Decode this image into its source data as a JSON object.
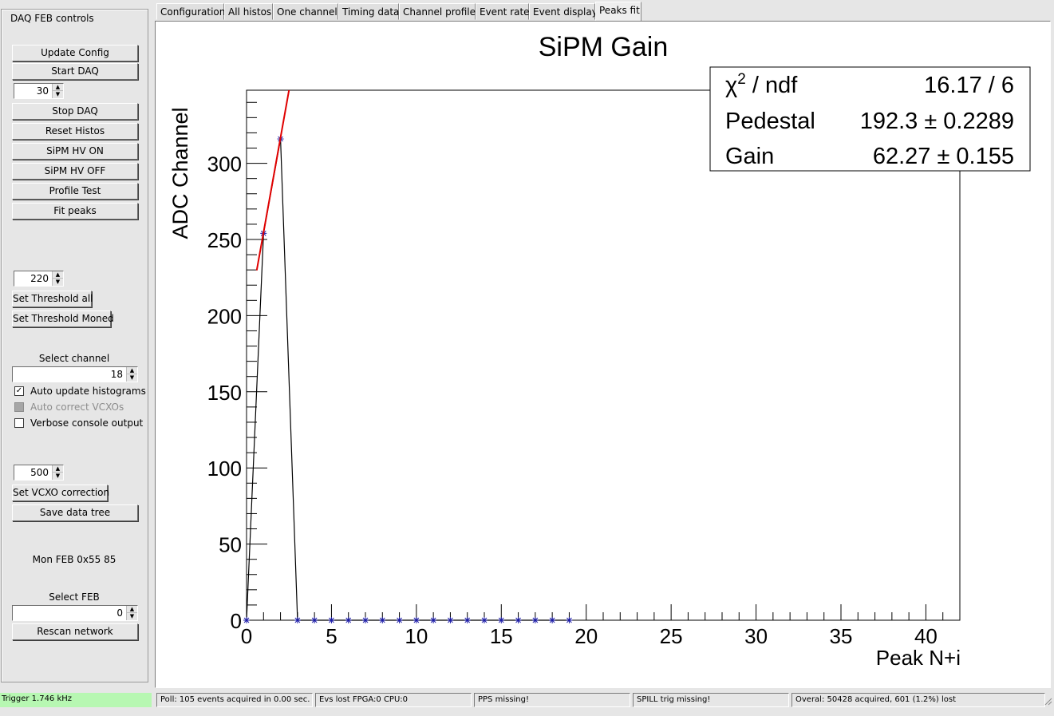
{
  "panel": {
    "title": "DAQ FEB controls",
    "buttons": {
      "update_config": "Update Config",
      "start_daq": "Start DAQ",
      "stop_daq": "Stop DAQ",
      "reset_histos": "Reset Histos",
      "sipm_hv_on": "SiPM HV ON",
      "sipm_hv_off": "SiPM HV OFF",
      "profile_test": "Profile Test",
      "fit_peaks": "Fit peaks",
      "set_threshold_all": "Set Threshold all",
      "set_threshold_moned": "Set Threshold Moned",
      "set_vcxo_correction": "Set VCXO correction",
      "save_data_tree": "Save data tree",
      "rescan_network": "Rescan network"
    },
    "daq_time_value": "30",
    "threshold_value": "220",
    "select_channel_label": "Select channel",
    "select_channel_value": "18",
    "checkboxes": {
      "auto_update": {
        "label": "Auto update histograms",
        "checked": true
      },
      "auto_correct": {
        "label": "Auto correct VCXOs",
        "checked": false,
        "disabled": true
      },
      "verbose": {
        "label": "Verbose console output",
        "checked": false
      }
    },
    "vcxo_value": "500",
    "mon_feb_label": "Mon FEB 0x55 85",
    "select_feb_label": "Select FEB",
    "select_feb_value": "0"
  },
  "tabs": [
    "Configuration",
    "All histos",
    "One channel",
    "Timing data",
    "Channel profile",
    "Event rate",
    "Event display",
    "Peaks fit"
  ],
  "active_tab": "Peaks fit",
  "stats_box": {
    "rows": [
      {
        "label_base": "χ",
        "label_sup": "2",
        "label_rest": " / ndf",
        "value": "16.17 / 6"
      },
      {
        "label_base": "Pedestal",
        "label_sup": "",
        "label_rest": "",
        "value": "192.3 ± 0.2289"
      },
      {
        "label_base": "Gain",
        "label_sup": "",
        "label_rest": "",
        "value": "62.27 ± 0.155"
      }
    ]
  },
  "chart_data": {
    "type": "line",
    "title": "SiPM Gain",
    "xlabel": "Peak N+i",
    "ylabel": "ADC Channel",
    "xlim": [
      0,
      42
    ],
    "ylim": [
      0,
      348
    ],
    "xticks": [
      0,
      5,
      10,
      15,
      20,
      25,
      30,
      35,
      40
    ],
    "yticks": [
      0,
      50,
      100,
      150,
      200,
      250,
      300
    ],
    "series": [
      {
        "style": "black line with blue star markers",
        "x": [
          0,
          1,
          2,
          3,
          4,
          5,
          6,
          7,
          8,
          9,
          10,
          11,
          12,
          13,
          14,
          15,
          16,
          17,
          18,
          19
        ],
        "y": [
          0,
          254,
          316,
          0,
          0,
          0,
          0,
          0,
          0,
          0,
          0,
          0,
          0,
          0,
          0,
          0,
          0,
          0,
          0,
          0
        ]
      },
      {
        "style": "red fit line",
        "fit": "pedestal + gain * x",
        "x": [
          0.6,
          2.55
        ],
        "y": [
          229.7,
          351.1
        ]
      }
    ],
    "colors": {
      "data_line": "#000000",
      "markers": "#1a1aa8",
      "fit": "#e00000"
    }
  },
  "statusbar": {
    "trigger": "Trigger 1.746 kHz",
    "poll": "Poll: 105 events acquired in 0.00 sec.",
    "lost": "Evs lost FPGA:0 CPU:0",
    "pps": "PPS missing!",
    "spill": "SPILL trig missing!",
    "overall": "Overal: 50428 acquired, 601 (1.2%) lost"
  }
}
